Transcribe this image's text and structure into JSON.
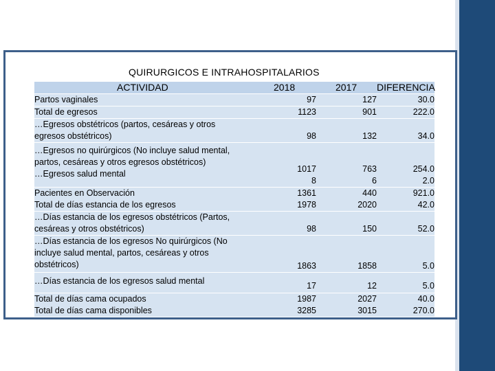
{
  "title": "QUIRURGICOS E INTRAHOSPITALARIOS",
  "headers": {
    "activity": "ACTIVIDAD",
    "y2018": "2018",
    "y2017": "2017",
    "diff": "DIFERENCIA"
  },
  "rows": [
    {
      "label": "Partos vaginales",
      "v2018": "97",
      "v2017": "127",
      "diff": "30.0"
    },
    {
      "label": "Total de egresos",
      "v2018": "1123",
      "v2017": "901",
      "diff": "222.0"
    },
    {
      "label": "…Egresos obstétricos (partos, cesáreas y otros\negresos obstétricos)",
      "v2018": "98",
      "v2017": "132",
      "diff": "34.0"
    },
    {
      "label": "…Egresos no quirúrgicos (No incluye salud mental,\npartos, cesáreas y otros egresos obstétricos)\n…Egresos salud mental",
      "v2018": "1017\n8",
      "v2017": "763\n6",
      "diff": "254.0\n2.0"
    },
    {
      "label": "Pacientes en Observación\nTotal de días estancia de los egresos",
      "v2018": "1361\n1978",
      "v2017": "440\n2020",
      "diff": "921.0\n42.0"
    },
    {
      "label": "…Días estancia de los egresos obstétricos (Partos,\ncesáreas y otros obstétricos)",
      "v2018": "98",
      "v2017": "150",
      "diff": "52.0"
    },
    {
      "label": "…Días estancia de los egresos No quirúrgicos (No\nincluye salud mental, partos, cesáreas y otros\nobstétricos)",
      "v2018": "1863",
      "v2017": "1858",
      "diff": "5.0"
    },
    {
      "label": "…Días estancia de los egresos salud mental",
      "v2018": "17",
      "v2017": "12",
      "diff": "5.0"
    },
    {
      "label": "Total de días cama ocupados\nTotal de días cama disponibles",
      "v2018": "1987\n3285",
      "v2017": "2027\n3015",
      "diff": "40.0\n270.0"
    }
  ],
  "colors": {
    "band": "#1e4a78",
    "frame": "#3d5f8a",
    "row_fill": "#d6e3f1",
    "header_fill": "#bfd3ea"
  }
}
